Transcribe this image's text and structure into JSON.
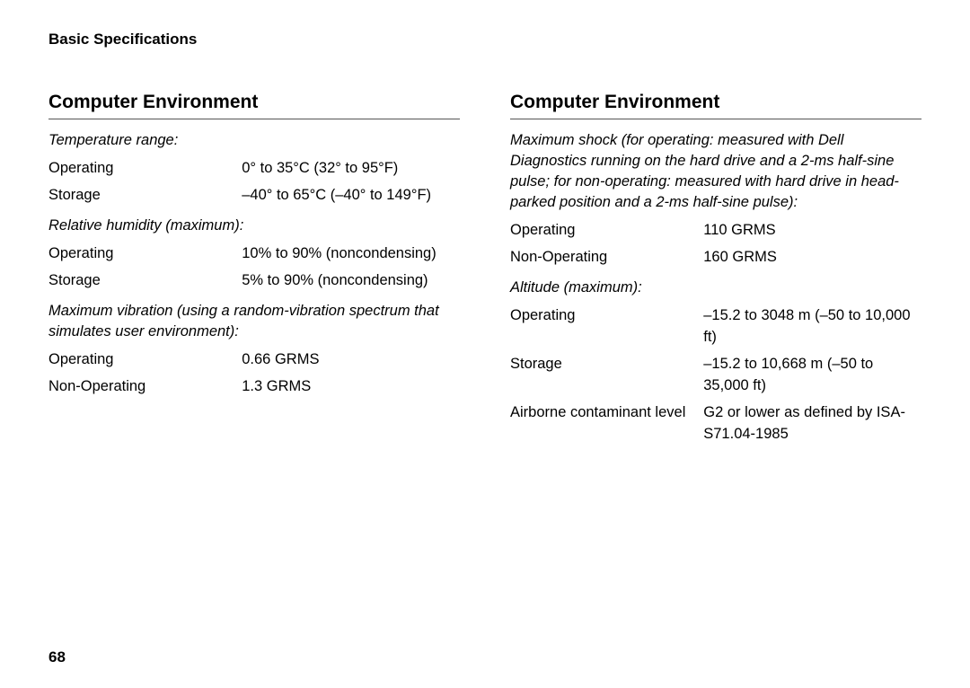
{
  "header": "Basic Specifications",
  "pageNumber": "68",
  "left": {
    "title": "Computer Environment",
    "sections": [
      {
        "subheader": "Temperature range:",
        "rows": [
          {
            "label": "Operating",
            "value": "0° to 35°C (32° to 95°F)"
          },
          {
            "label": "Storage",
            "value": "–40° to 65°C (–40° to 149°F)"
          }
        ]
      },
      {
        "subheader": "Relative humidity (maximum):",
        "rows": [
          {
            "label": "Operating",
            "value": "10% to 90% (noncondensing)"
          },
          {
            "label": "Storage",
            "value": "5% to 90% (noncondensing)"
          }
        ]
      },
      {
        "subheader": "Maximum vibration (using a random-vibration spectrum that simulates user environment):",
        "rows": [
          {
            "label": "Operating",
            "value": "0.66 GRMS"
          },
          {
            "label": "Non-Operating",
            "value": "1.3 GRMS"
          }
        ]
      }
    ]
  },
  "right": {
    "title": "Computer Environment",
    "sections": [
      {
        "subheader": "Maximum shock (for operating: measured with Dell Diagnostics running on the hard drive and a 2-ms half-sine pulse; for non-operating: measured with hard drive in head-parked position and a 2-ms half-sine pulse):",
        "rows": [
          {
            "label": "Operating",
            "value": "110 GRMS"
          },
          {
            "label": "Non-Operating",
            "value": "160 GRMS"
          }
        ]
      },
      {
        "subheader": "Altitude (maximum):",
        "rows": [
          {
            "label": "Operating",
            "value": "–15.2 to 3048 m (–50 to 10,000 ft)"
          },
          {
            "label": "Storage",
            "value": "–15.2 to 10,668 m (–50 to 35,000 ft)"
          },
          {
            "label": "Airborne contaminant level",
            "value": "G2 or lower as defined by ISA-S71.04-1985"
          }
        ]
      }
    ]
  }
}
